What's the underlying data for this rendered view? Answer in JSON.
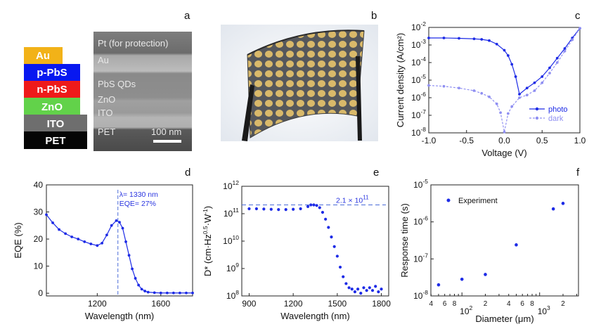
{
  "panel_letters": [
    "a",
    "b",
    "c",
    "d",
    "e",
    "f"
  ],
  "panel_a": {
    "stack_layers": [
      {
        "name": "Au",
        "color": "#f2b218"
      },
      {
        "name": "p-PbS",
        "color": "#0818f0"
      },
      {
        "name": "n-PbS",
        "color": "#ee1a1a"
      },
      {
        "name": "ZnO",
        "color": "#62d24a"
      },
      {
        "name": "ITO",
        "color": "#6e6e6e"
      },
      {
        "name": "PET",
        "color": "#050505"
      }
    ],
    "sem_labels": [
      "Pt (for protection)",
      "Au",
      "PbS QDs",
      "ZnO",
      "ITO",
      "PET"
    ],
    "scale_bar": "100 nm"
  },
  "panel_b": {
    "description_icon": "flexible-device-photo"
  },
  "chart_data": [
    {
      "id": "c",
      "type": "line",
      "xlabel": "Voltage (V)",
      "ylabel": "Current density (A/cm²)",
      "xlim": [
        -1.0,
        1.0
      ],
      "ylim_log10": [
        -8,
        -2
      ],
      "xticks": [
        "-1.0",
        "-0.5",
        "0.0",
        "0.5",
        "1.0"
      ],
      "yticks": [
        {
          "base": "10",
          "exp": "-8"
        },
        {
          "base": "10",
          "exp": "-7"
        },
        {
          "base": "10",
          "exp": "-6"
        },
        {
          "base": "10",
          "exp": "-5"
        },
        {
          "base": "10",
          "exp": "-4"
        },
        {
          "base": "10",
          "exp": "-3"
        },
        {
          "base": "10",
          "exp": "-2"
        }
      ],
      "series": [
        {
          "name": "photo",
          "color": "#1d2be6",
          "x": [
            -1.0,
            -0.8,
            -0.6,
            -0.4,
            -0.3,
            -0.2,
            -0.1,
            0.0,
            0.05,
            0.1,
            0.15,
            0.2,
            0.3,
            0.4,
            0.5,
            0.6,
            0.7,
            0.8,
            0.9,
            1.0
          ],
          "y_log10": [
            -2.6,
            -2.6,
            -2.62,
            -2.65,
            -2.68,
            -2.75,
            -2.95,
            -3.3,
            -3.6,
            -4.1,
            -4.8,
            -5.8,
            -5.45,
            -5.15,
            -4.8,
            -4.3,
            -3.75,
            -3.2,
            -2.6,
            -2.05
          ]
        },
        {
          "name": "dark",
          "color": "#8f8ff2",
          "x": [
            -1.0,
            -0.8,
            -0.6,
            -0.4,
            -0.3,
            -0.2,
            -0.1,
            -0.05,
            0.0,
            0.05,
            0.1,
            0.2,
            0.3,
            0.4,
            0.5,
            0.6,
            0.7,
            0.8,
            0.9,
            1.0
          ],
          "y_log10": [
            -5.3,
            -5.35,
            -5.45,
            -5.6,
            -5.75,
            -5.95,
            -6.35,
            -6.85,
            -7.95,
            -6.9,
            -6.5,
            -6.0,
            -5.85,
            -5.6,
            -5.15,
            -4.6,
            -4.0,
            -3.35,
            -2.7,
            -2.05
          ]
        }
      ]
    },
    {
      "id": "d",
      "type": "line",
      "xlabel": "Wavelength (nm)",
      "ylabel": "EQE (%)",
      "xlim": [
        880,
        1800
      ],
      "ylim": [
        -1,
        40
      ],
      "xticks": [
        "1200",
        "1600"
      ],
      "yticks": [
        "0",
        "10",
        "20",
        "30",
        "40"
      ],
      "annotation": {
        "line1": "λ= 1330 nm",
        "line2": "EQE= 27%",
        "x": 1330
      },
      "series": [
        {
          "name": "EQE",
          "color": "#1d2be6",
          "x": [
            880,
            920,
            960,
            1000,
            1040,
            1080,
            1120,
            1160,
            1200,
            1230,
            1260,
            1290,
            1320,
            1340,
            1360,
            1380,
            1400,
            1420,
            1440,
            1460,
            1480,
            1500,
            1520,
            1560,
            1600,
            1640,
            1680,
            1720,
            1760,
            1800
          ],
          "y": [
            29,
            26,
            23.5,
            22,
            20.8,
            20,
            19,
            18.2,
            17.6,
            18.5,
            21.5,
            25,
            26.8,
            26.2,
            24,
            19,
            14,
            9,
            5.5,
            3,
            1.5,
            0.8,
            0.4,
            0.2,
            0.1,
            0.1,
            0.1,
            0.1,
            0.1,
            0.1
          ]
        }
      ]
    },
    {
      "id": "e",
      "type": "scatter",
      "xlabel": "Wavelength (nm)",
      "ylabel": "D* (cm·Hz⁰·⁵·W⁻¹)",
      "ylabel_parts": [
        "D* (cm·Hz",
        "0.5",
        "·W",
        "-1",
        ")"
      ],
      "xlim": [
        850,
        1850
      ],
      "ylim_log10": [
        8,
        12
      ],
      "xticks": [
        "900",
        "1200",
        "1500",
        "1800"
      ],
      "yticks": [
        {
          "base": "10",
          "exp": "8"
        },
        {
          "base": "10",
          "exp": "9"
        },
        {
          "base": "10",
          "exp": "10"
        },
        {
          "base": "10",
          "exp": "11"
        },
        {
          "base": "10",
          "exp": "12"
        }
      ],
      "annotation": {
        "text": "2.1 × 10",
        "exp": "11",
        "y_log10": 11.32
      },
      "series": [
        {
          "name": "D*",
          "color": "#1d2be6",
          "x": [
            900,
            950,
            1000,
            1050,
            1100,
            1150,
            1200,
            1250,
            1300,
            1320,
            1340,
            1360,
            1380,
            1400,
            1420,
            1440,
            1460,
            1480,
            1500,
            1520,
            1540,
            1560,
            1580,
            1600,
            1620,
            1640,
            1660,
            1680,
            1700,
            1720,
            1740,
            1760,
            1780,
            1800
          ],
          "y_log10": [
            11.18,
            11.18,
            11.17,
            11.16,
            11.15,
            11.15,
            11.16,
            11.18,
            11.26,
            11.32,
            11.32,
            11.3,
            11.22,
            11.05,
            10.8,
            10.5,
            10.15,
            9.8,
            9.45,
            9.05,
            8.7,
            8.45,
            8.3,
            8.25,
            8.15,
            8.25,
            8.1,
            8.3,
            8.2,
            8.3,
            8.2,
            8.35,
            8.15,
            8.25
          ]
        }
      ]
    },
    {
      "id": "f",
      "type": "scatter",
      "xlabel": "Diameter (μm)",
      "ylabel": "Response time (s)",
      "xlim_log10": [
        1.6,
        3.5
      ],
      "ylim_log10": [
        -8,
        -5
      ],
      "xtick_labels": [
        {
          "base": "10",
          "exp": "2"
        },
        {
          "base": "10",
          "exp": "3"
        }
      ],
      "minor_labels": [
        {
          "v": "4",
          "pos": 40
        },
        {
          "v": "6",
          "pos": 60
        },
        {
          "v": "8",
          "pos": 80
        },
        {
          "v": "2",
          "pos": 200
        },
        {
          "v": "4",
          "pos": 400
        },
        {
          "v": "6",
          "pos": 600
        },
        {
          "v": "8",
          "pos": 800
        },
        {
          "v": "2",
          "pos": 2000
        }
      ],
      "yticks": [
        {
          "base": "10",
          "exp": "-8"
        },
        {
          "base": "10",
          "exp": "-7"
        },
        {
          "base": "10",
          "exp": "-6"
        },
        {
          "base": "10",
          "exp": "-5"
        }
      ],
      "legend": "Experiment",
      "series": [
        {
          "name": "Experiment",
          "color": "#1d2be6",
          "x": [
            50,
            100,
            200,
            500,
            1500,
            2000
          ],
          "y_log10": [
            -7.7,
            -7.55,
            -7.42,
            -6.62,
            -5.65,
            -5.5
          ]
        }
      ]
    }
  ]
}
